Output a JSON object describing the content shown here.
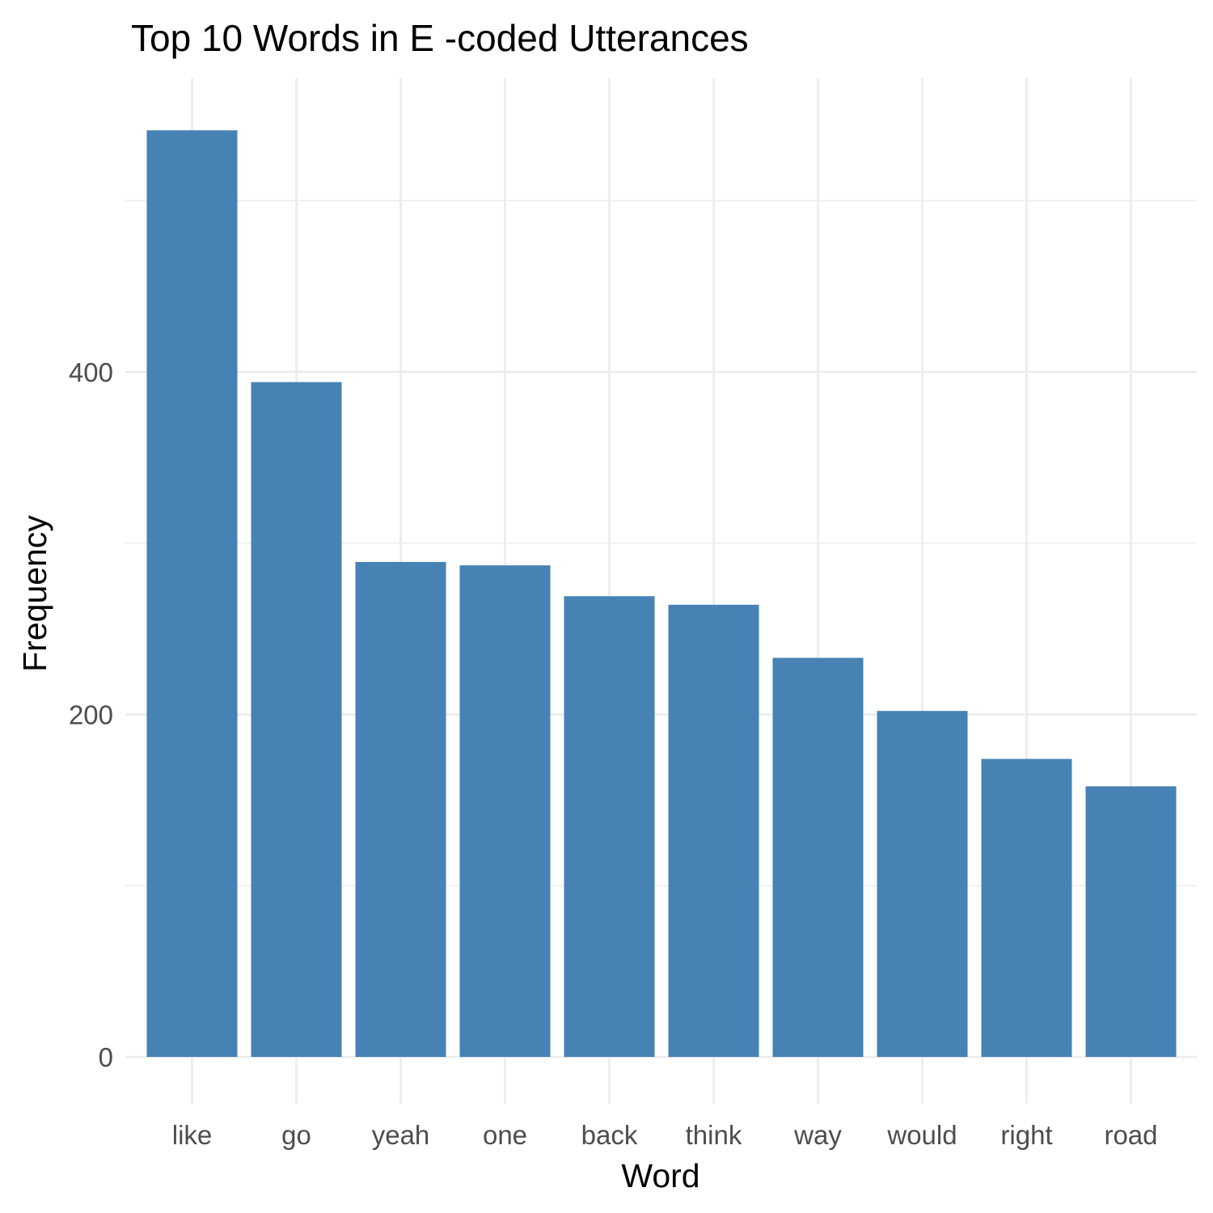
{
  "chart_data": {
    "type": "bar",
    "title": "Top 10 Words in E -coded Utterances",
    "xlabel": "Word",
    "ylabel": "Frequency",
    "categories": [
      "like",
      "go",
      "yeah",
      "one",
      "back",
      "think",
      "way",
      "would",
      "right",
      "road"
    ],
    "values": [
      541,
      394,
      289,
      287,
      269,
      264,
      233,
      202,
      174,
      158
    ],
    "ylim": [
      0,
      541
    ],
    "yticks": [
      0,
      200,
      400
    ],
    "grid": true,
    "bar_color": "#4682b4",
    "legend": "none"
  }
}
